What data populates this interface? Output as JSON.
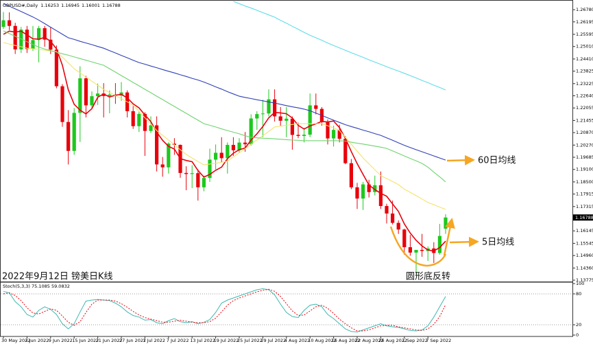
{
  "chart_data": [
    {
      "type": "candlestick",
      "title": "GBPUSD#,Daily",
      "categories": [
        "30 May 2022",
        null,
        null,
        null,
        "3 Jun 2022",
        null,
        null,
        null,
        "9 Jun 2022",
        null,
        null,
        null,
        "15 Jun 2022",
        null,
        null,
        null,
        "21 Jun 2022",
        null,
        null,
        null,
        "27 Jun 2022",
        null,
        null,
        null,
        "1 Jul 2022",
        null,
        null,
        null,
        "7 Jul 2022",
        null,
        null,
        null,
        "13 Jul 2022",
        null,
        null,
        null,
        "19 Jul 2022",
        null,
        null,
        null,
        "25 Jul 2022",
        null,
        null,
        null,
        "29 Jul 2022",
        null,
        null,
        null,
        "4 Aug 2022",
        null,
        null,
        null,
        "10 Aug 2022",
        null,
        null,
        null,
        "16 Aug 2022",
        null,
        null,
        null,
        "22 Aug 2022",
        null,
        null,
        null,
        "26 Aug 2022",
        null,
        null,
        null,
        "1 Sep 2022",
        null,
        null,
        null,
        "7 Sep 2022",
        null,
        null,
        null
      ],
      "open": [
        1.2595,
        1.2627,
        1.26,
        1.2487,
        1.2582,
        1.2489,
        1.2532,
        1.2589,
        1.2534,
        1.2486,
        1.231,
        1.2138,
        1.1999,
        1.2182,
        1.2348,
        1.2218,
        1.2262,
        1.2275,
        1.2263,
        1.227,
        1.2265,
        1.228,
        1.219,
        1.2118,
        1.2177,
        1.2095,
        1.2122,
        1.1934,
        1.192,
        1.2034,
        1.2028,
        1.1893,
        1.1888,
        1.1892,
        1.1824,
        1.1869,
        1.1957,
        1.199,
        1.1964,
        1.2028,
        1.2002,
        1.2039,
        1.2031,
        1.2155,
        1.2176,
        1.2179,
        1.2247,
        1.2165,
        1.2144,
        1.2154,
        1.2076,
        1.2071,
        1.2077,
        1.2218,
        1.2201,
        1.2137,
        1.2059,
        1.21,
        1.2057,
        1.194,
        1.1824,
        1.177,
        1.1838,
        1.1801,
        1.1834,
        1.1734,
        1.1698,
        1.1653,
        1.1621,
        1.1536,
        1.151,
        1.1523,
        1.1518,
        1.153,
        1.1508,
        1.16253
      ],
      "high": [
        1.2667,
        1.2665,
        1.2615,
        1.2595,
        1.26,
        1.26,
        1.26,
        1.26,
        1.2595,
        1.2506,
        1.232,
        1.2195,
        1.2205,
        1.2406,
        1.236,
        1.2285,
        1.2323,
        1.2325,
        1.229,
        1.2325,
        1.233,
        1.229,
        1.2215,
        1.219,
        1.2185,
        1.2165,
        1.2165,
        1.197,
        1.204,
        1.206,
        1.203,
        1.1925,
        1.193,
        1.191,
        1.188,
        1.201,
        1.203,
        1.2065,
        1.204,
        1.2065,
        1.206,
        1.209,
        1.2175,
        1.219,
        1.2245,
        1.2295,
        1.2295,
        1.221,
        1.221,
        1.2165,
        1.2135,
        1.211,
        1.2275,
        1.2275,
        1.221,
        1.215,
        1.212,
        1.2125,
        1.207,
        1.196,
        1.1845,
        1.185,
        1.186,
        1.188,
        1.19,
        1.1745,
        1.176,
        1.1665,
        1.1625,
        1.1595,
        1.152,
        1.16,
        1.154,
        1.156,
        1.1648,
        1.16945
      ],
      "low": [
        1.2585,
        1.258,
        1.2465,
        1.247,
        1.247,
        1.248,
        1.2425,
        1.25,
        1.2465,
        1.23,
        1.2115,
        1.1934,
        1.198,
        1.2042,
        1.216,
        1.22,
        1.222,
        1.216,
        1.218,
        1.2225,
        1.224,
        1.216,
        1.2105,
        1.209,
        1.1975,
        1.2085,
        1.19,
        1.1875,
        1.189,
        1.198,
        1.187,
        1.181,
        1.182,
        1.176,
        1.1805,
        1.185,
        1.191,
        1.1945,
        1.189,
        1.1975,
        1.199,
        1.1995,
        1.2025,
        1.21,
        1.2065,
        1.2165,
        1.214,
        1.212,
        1.2065,
        1.2005,
        1.206,
        1.204,
        1.2065,
        1.2175,
        1.212,
        1.203,
        1.202,
        1.204,
        1.1935,
        1.1815,
        1.172,
        1.1715,
        1.1775,
        1.1785,
        1.172,
        1.165,
        1.1645,
        1.16,
        1.15,
        1.1495,
        1.1405,
        1.149,
        1.147,
        1.146,
        1.15,
        1.16001
      ],
      "close": [
        1.2627,
        1.26,
        1.2487,
        1.2582,
        1.2489,
        1.2532,
        1.2589,
        1.2534,
        1.2486,
        1.231,
        1.2138,
        1.1999,
        1.2182,
        1.2348,
        1.2218,
        1.2262,
        1.2275,
        1.2263,
        1.227,
        1.2265,
        1.228,
        1.219,
        1.2118,
        1.2177,
        1.2095,
        1.2122,
        1.1934,
        1.192,
        1.2034,
        1.2028,
        1.1893,
        1.1888,
        1.1892,
        1.1824,
        1.1869,
        1.1957,
        1.199,
        1.1964,
        1.2028,
        1.2002,
        1.2039,
        1.2031,
        1.2155,
        1.2176,
        1.2179,
        1.2247,
        1.2165,
        1.2144,
        1.2154,
        1.2076,
        1.2071,
        1.2077,
        1.2218,
        1.2201,
        1.2137,
        1.2059,
        1.21,
        1.2057,
        1.194,
        1.1824,
        1.177,
        1.1838,
        1.1801,
        1.1834,
        1.1734,
        1.1698,
        1.1653,
        1.1621,
        1.1536,
        1.151,
        1.1523,
        1.1518,
        1.153,
        1.1508,
        1.159,
        1.16788
      ],
      "up_color": "#1ec81e",
      "down_color": "#e8000b",
      "lines": [
        {
          "color": "#e8000b",
          "values": [
            1.256,
            1.2575,
            1.257,
            1.2575,
            1.2557,
            1.2538,
            1.2536,
            1.2545,
            1.2526,
            1.249,
            1.2411,
            1.2293,
            1.2223,
            1.2195,
            1.2177,
            1.2202,
            1.2257,
            1.2273,
            1.2258,
            1.2267,
            1.2271,
            1.2254,
            1.2225,
            1.2206,
            1.2172,
            1.214,
            1.2089,
            1.205,
            1.2021,
            1.2008,
            1.1962,
            1.1953,
            1.1947,
            1.1905,
            1.1873,
            1.1886,
            1.1906,
            1.1921,
            1.1962,
            1.1988,
            1.2005,
            1.2013,
            1.2051,
            1.2081,
            1.2116,
            1.2158,
            1.2184,
            1.2182,
            1.2178,
            1.2157,
            1.2122,
            1.2104,
            1.2119,
            1.2129,
            1.2141,
            1.2138,
            1.2143,
            1.2111,
            1.2059,
            1.1996,
            1.1938,
            1.1886,
            1.1835,
            1.1813,
            1.1795,
            1.1781,
            1.1744,
            1.1708,
            1.1648,
            1.1604,
            1.1569,
            1.1542,
            1.1523,
            1.1518,
            1.1534,
            1.1565
          ]
        },
        {
          "color": "#f5e36a",
          "values": [
            1.252,
            1.2513,
            1.2506,
            1.25,
            1.2493,
            1.249,
            1.2487,
            1.2484,
            1.248,
            1.2477,
            1.245,
            1.2422,
            1.2394,
            1.2374,
            1.2354,
            1.2334,
            1.2315,
            1.2295,
            1.228,
            1.2265,
            1.225,
            1.2235,
            1.2218,
            1.2188,
            1.2158,
            1.2128,
            1.2097,
            1.2074,
            1.2051,
            1.2028,
            1.2005,
            1.1982,
            1.1965,
            1.1948,
            1.1932,
            1.1936,
            1.194,
            1.1944,
            1.1949,
            1.197,
            1.199,
            1.201,
            1.2031,
            1.2052,
            1.2072,
            1.2093,
            1.2114,
            1.2118,
            1.2122,
            1.2126,
            1.213,
            1.213,
            1.213,
            1.213,
            1.213,
            1.212,
            1.211,
            1.2097,
            1.2064,
            1.2031,
            1.1998,
            1.1965,
            1.1937,
            1.1908,
            1.188,
            1.1866,
            1.1852,
            1.1837,
            1.1815,
            1.18,
            1.1784,
            1.1768,
            1.1751,
            1.174,
            1.1729,
            1.1718
          ]
        },
        {
          "color": "#6fd36f",
          "values": [
            1.2576,
            1.2563,
            1.255,
            1.2537,
            1.2524,
            1.2511,
            1.2498,
            1.2489,
            1.2481,
            1.2474,
            1.2466,
            1.2459,
            1.2451,
            1.2443,
            1.2435,
            1.2427,
            1.2419,
            1.2411,
            1.2394,
            1.2378,
            1.2361,
            1.2345,
            1.2328,
            1.2312,
            1.2295,
            1.2279,
            1.2262,
            1.2246,
            1.2229,
            1.2213,
            1.2196,
            1.218,
            1.2163,
            1.2147,
            1.213,
            1.2122,
            1.2114,
            1.2105,
            1.2097,
            1.2089,
            1.2081,
            1.2072,
            1.2064,
            1.2062,
            1.206,
            1.2059,
            1.2057,
            1.2055,
            1.2053,
            1.2051,
            1.205,
            1.2048,
            1.2048,
            1.2048,
            1.2048,
            1.2048,
            1.2048,
            1.2048,
            1.2046,
            1.2041,
            1.2036,
            1.2032,
            1.2027,
            1.2022,
            1.2017,
            1.2011,
            1.1999,
            1.1987,
            1.1975,
            1.1963,
            1.1951,
            1.1939,
            1.1921,
            1.1897,
            1.1874,
            1.185
          ]
        },
        {
          "color": "#2f3fb8",
          "values": [
            1.2708,
            1.2695,
            1.2682,
            1.2669,
            1.2656,
            1.2643,
            1.2628,
            1.2611,
            1.2594,
            1.2577,
            1.256,
            1.2543,
            1.2535,
            1.2526,
            1.2518,
            1.251,
            1.2501,
            1.2493,
            1.2481,
            1.247,
            1.2458,
            1.2447,
            1.2435,
            1.2424,
            1.2416,
            1.2407,
            1.2399,
            1.239,
            1.2382,
            1.2374,
            1.2365,
            1.2357,
            1.2348,
            1.234,
            1.233,
            1.2319,
            1.2307,
            1.2296,
            1.2284,
            1.2273,
            1.2262,
            1.2256,
            1.2251,
            1.2245,
            1.224,
            1.2234,
            1.2229,
            1.2223,
            1.2217,
            1.2211,
            1.2206,
            1.22,
            1.2192,
            1.2181,
            1.217,
            1.2158,
            1.2147,
            1.2136,
            1.2125,
            1.2116,
            1.2108,
            1.2099,
            1.2091,
            1.2082,
            1.2074,
            1.2062,
            1.205,
            1.2038,
            1.2026,
            1.2015,
            1.2005,
            1.1995,
            1.1985,
            1.1975,
            1.1965,
            1.1955
          ]
        },
        {
          "color": "#5fdde8",
          "values": [
            null,
            null,
            null,
            null,
            null,
            null,
            null,
            null,
            null,
            null,
            null,
            null,
            null,
            null,
            null,
            null,
            null,
            null,
            null,
            null,
            null,
            null,
            null,
            null,
            null,
            null,
            null,
            null,
            null,
            null,
            null,
            null,
            null,
            null,
            null,
            null,
            null,
            null,
            null,
            1.2718,
            1.2707,
            1.2696,
            1.2686,
            1.2675,
            1.2664,
            1.2653,
            1.2642,
            1.2627,
            1.2613,
            1.2598,
            1.2584,
            1.2569,
            1.2555,
            1.2543,
            1.2531,
            1.2518,
            1.2506,
            1.2494,
            1.2483,
            1.2471,
            1.246,
            1.2449,
            1.2437,
            1.2426,
            1.2415,
            1.2404,
            1.2393,
            1.2383,
            1.2372,
            1.2361,
            1.235,
            1.2338,
            1.2327,
            1.2315,
            1.2304,
            1.2292
          ]
        }
      ],
      "ylim": [
        1.1371,
        1.2718
      ],
      "yticks": [
        {
          "value": 1.2678,
          "label": "1.26780"
        },
        1.26195,
        1.25595,
        {
          "value": 1.2501,
          "label": "1.25010"
        },
        {
          "value": 1.2441,
          "label": "1.24410"
        },
        1.23825,
        1.23225,
        {
          "value": 1.2264,
          "label": "1.22640"
        },
        1.22055,
        1.21455,
        {
          "value": 1.2087,
          "label": "1.20870"
        },
        {
          "value": 1.2027,
          "label": "1.20270"
        },
        1.19685,
        {
          "value": 1.191,
          "label": "1.19100"
        },
        {
          "value": 1.185,
          "label": "1.18500"
        },
        1.17915,
        1.17315,
        1.16145,
        1.15545,
        {
          "value": 1.1496,
          "label": "1.14960"
        },
        {
          "value": 1.1436,
          "label": "1.14360"
        },
        1.13775
      ],
      "grid": false,
      "annotations": [
        "2022年9月12日 镑美日K线",
        "圆形底反转",
        "60日均线",
        "5日均线"
      ]
    },
    {
      "type": "line",
      "title": "Stoch(5,3,3) 75.1085 59.0832",
      "series": [
        {
          "color": "#3cb8b0",
          "dashed": false,
          "values": [
            85,
            82,
            65,
            55,
            40,
            35,
            48,
            55,
            50,
            40,
            22,
            12,
            22,
            45,
            66,
            68,
            69,
            68,
            67,
            62,
            55,
            45,
            38,
            35,
            29,
            30,
            24,
            22,
            28,
            32,
            26,
            24,
            26,
            22,
            25,
            30,
            44,
            62,
            68,
            72,
            76,
            80,
            84,
            88,
            90,
            88,
            78,
            60,
            44,
            36,
            34,
            48,
            58,
            60,
            55,
            40,
            32,
            22,
            12,
            7,
            6,
            10,
            14,
            18,
            22,
            18,
            16,
            15,
            12,
            9,
            8,
            10,
            18,
            35,
            55,
            75.1085
          ]
        },
        {
          "color": "#e8000b",
          "dashed": true,
          "values": [
            80,
            82,
            77,
            67,
            53,
            43,
            41,
            46,
            51,
            48,
            37,
            25,
            19,
            26,
            44,
            60,
            68,
            68,
            68,
            66,
            61,
            54,
            46,
            39,
            34,
            31,
            28,
            25,
            25,
            27,
            29,
            27,
            25,
            24,
            24,
            26,
            33,
            45,
            58,
            67,
            72,
            76,
            80,
            84,
            87,
            89,
            85,
            75,
            61,
            47,
            38,
            39,
            47,
            55,
            58,
            52,
            42,
            31,
            22,
            14,
            8,
            8,
            10,
            14,
            18,
            19,
            19,
            16,
            14,
            12,
            10,
            9,
            12,
            21,
            36,
            59.0832
          ]
        }
      ],
      "ylim": [
        0,
        100
      ],
      "yticks": [
        0,
        20,
        80,
        100
      ],
      "grid": true
    }
  ]
}
